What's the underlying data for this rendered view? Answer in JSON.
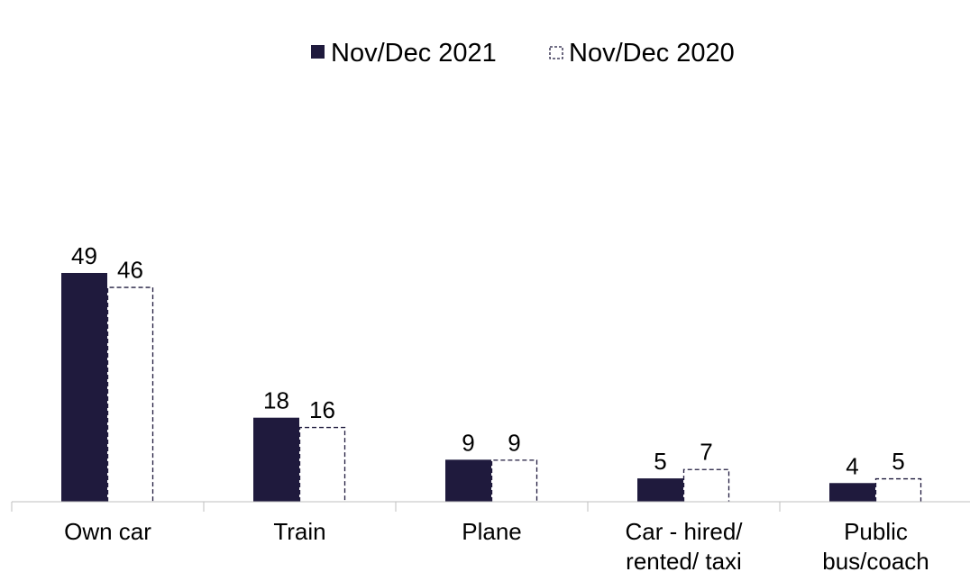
{
  "chart_data": {
    "type": "bar",
    "title": "",
    "xlabel": "",
    "ylabel": "",
    "ylim": [
      0,
      50
    ],
    "grid": false,
    "legend_position": "top-center",
    "categories": [
      [
        "Own car"
      ],
      [
        "Train"
      ],
      [
        "Plane"
      ],
      [
        "Car - hired/",
        "rented/ taxi"
      ],
      [
        "Public",
        "bus/coach"
      ]
    ],
    "series": [
      {
        "name": "Nov/Dec 2021",
        "values": [
          49,
          18,
          9,
          5,
          4
        ],
        "color": "#1f1a3d",
        "style": "solid"
      },
      {
        "name": "Nov/Dec 2020",
        "values": [
          46,
          16,
          9,
          7,
          5
        ],
        "color": "#1f1a3d",
        "style": "dashed-outline"
      }
    ]
  }
}
